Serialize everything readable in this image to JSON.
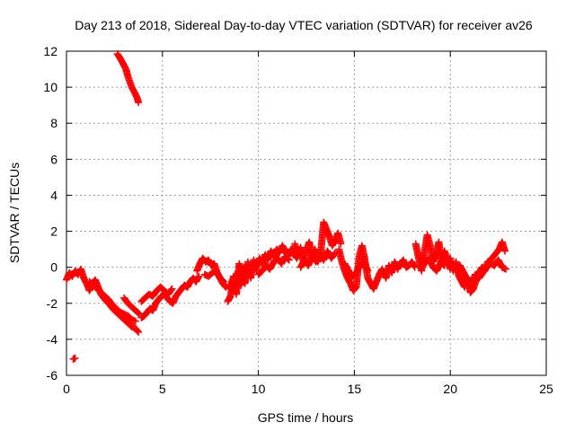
{
  "chart_data": {
    "type": "scatter",
    "title": "Day 213 of 2018, Sidereal Day-to-day VTEC variation (SDTVAR) for receiver av26",
    "xlabel": "GPS time / hours",
    "ylabel": "SDTVAR / TECUs",
    "xlim": [
      0,
      25
    ],
    "ylim": [
      -6,
      12
    ],
    "xticks": [
      "0",
      "5",
      "10",
      "15",
      "20",
      "25"
    ],
    "yticks": [
      "-6",
      "-4",
      "-2",
      "0",
      "2",
      "4",
      "6",
      "8",
      "10",
      "12"
    ],
    "grid": true,
    "marker": "+",
    "series": [
      {
        "name": "SDTVAR",
        "color": "#ff0000",
        "segments": [
          {
            "x": [
              2.65,
              2.8,
              2.95,
              3.1,
              3.2,
              3.3,
              3.4,
              3.5,
              3.6,
              3.7,
              3.75
            ],
            "y": [
              11.85,
              11.6,
              11.3,
              11.0,
              10.6,
              10.3,
              10.0,
              9.8,
              9.6,
              9.35,
              9.15
            ]
          },
          {
            "x": [
              0.35,
              0.45
            ],
            "y": [
              -5.1,
              -5.05
            ]
          },
          {
            "x": [
              0.0,
              0.15,
              0.3,
              0.45,
              0.6,
              0.75,
              0.9,
              1.05,
              1.2,
              1.35,
              1.5,
              1.65,
              1.8,
              2.0,
              2.2,
              2.4,
              2.6,
              2.8,
              3.0,
              3.2,
              3.4,
              3.6,
              3.75
            ],
            "y": [
              -0.7,
              -0.3,
              -0.5,
              -0.2,
              -0.4,
              -0.1,
              -0.6,
              -0.9,
              -1.3,
              -0.9,
              -0.7,
              -1.1,
              -1.5,
              -1.8,
              -2.0,
              -2.3,
              -2.5,
              -2.7,
              -2.9,
              -3.1,
              -3.3,
              -3.4,
              -3.6
            ]
          },
          {
            "x": [
              1.2,
              1.4,
              1.6,
              1.8,
              2.0,
              2.2,
              2.4,
              2.6,
              2.8,
              3.0,
              3.2,
              3.4,
              3.6
            ],
            "y": [
              -0.8,
              -1.0,
              -1.2,
              -1.4,
              -1.6,
              -1.8,
              -2.1,
              -2.3,
              -2.5,
              -2.6,
              -2.7,
              -2.9,
              -3.0
            ]
          },
          {
            "x": [
              3.0,
              3.2,
              3.4,
              3.6,
              3.8
            ],
            "y": [
              -1.7,
              -2.0,
              -2.2,
              -2.4,
              -2.6
            ]
          },
          {
            "x": [
              3.9,
              4.05,
              4.2,
              4.35,
              4.5,
              4.65,
              4.8,
              4.95,
              5.1,
              5.25,
              5.4,
              5.55,
              5.7,
              5.85,
              6.0,
              6.15,
              6.3,
              6.45,
              6.6,
              6.75,
              6.9
            ],
            "y": [
              -2.8,
              -2.7,
              -2.5,
              -2.3,
              -2.4,
              -2.0,
              -1.8,
              -1.6,
              -1.5,
              -1.7,
              -1.9,
              -2.0,
              -1.6,
              -1.4,
              -1.2,
              -1.0,
              -1.1,
              -0.8,
              -0.6,
              -0.8,
              -0.5
            ]
          },
          {
            "x": [
              3.9,
              4.1,
              4.3,
              4.5,
              4.7,
              4.9,
              5.1,
              5.3,
              5.5
            ],
            "y": [
              -1.9,
              -1.7,
              -1.5,
              -1.6,
              -1.3,
              -1.1,
              -1.3,
              -1.5,
              -1.2
            ]
          },
          {
            "x": [
              6.8,
              6.95,
              7.1,
              7.25,
              7.4,
              7.55,
              7.7,
              7.85,
              8.0,
              8.15,
              8.3
            ],
            "y": [
              -0.2,
              0.2,
              0.5,
              0.3,
              0.4,
              0.1,
              0.2,
              -0.3,
              -0.6,
              -0.9,
              -1.1
            ]
          },
          {
            "x": [
              7.2,
              7.4,
              7.6,
              7.8,
              8.0,
              8.2
            ],
            "y": [
              -0.4,
              -0.5,
              -0.3,
              -0.2,
              -0.6,
              -0.8
            ]
          },
          {
            "x": [
              8.4,
              8.55,
              8.7,
              8.85,
              9.0,
              9.15,
              9.3,
              9.45,
              9.6,
              9.75,
              9.9
            ],
            "y": [
              -1.9,
              -1.6,
              -0.5,
              -1.5,
              0.2,
              -0.3,
              -0.9,
              0.3,
              -0.6,
              0.4,
              -0.2
            ]
          },
          {
            "x": [
              8.5,
              8.65,
              8.8,
              8.95,
              9.1,
              9.25,
              9.4
            ],
            "y": [
              -1.2,
              -0.7,
              -1.3,
              -0.2,
              -1.0,
              0.0,
              -0.5
            ]
          },
          {
            "x": [
              9.9,
              10.05,
              10.2,
              10.35,
              10.5,
              10.65,
              10.8,
              10.95,
              11.1,
              11.25,
              11.4,
              11.55,
              11.7,
              11.85,
              12.0
            ],
            "y": [
              0.0,
              0.5,
              0.2,
              0.7,
              0.4,
              0.9,
              0.6,
              1.0,
              0.8,
              1.2,
              0.9,
              0.6,
              1.0,
              0.8,
              0.5
            ]
          },
          {
            "x": [
              10.0,
              10.2,
              10.4,
              10.6,
              10.8,
              11.0,
              11.2,
              11.4,
              11.6
            ],
            "y": [
              -0.4,
              -0.2,
              0.1,
              -0.1,
              0.3,
              0.5,
              0.2,
              0.6,
              0.4
            ]
          },
          {
            "x": [
              11.9,
              12.05,
              12.2,
              12.35,
              12.5,
              12.65,
              12.8,
              12.95,
              13.1,
              13.25,
              13.4,
              13.55,
              13.7,
              13.85,
              14.0,
              14.15,
              14.3
            ],
            "y": [
              1.3,
              0.6,
              1.1,
              0.2,
              0.9,
              1.4,
              0.6,
              1.0,
              0.3,
              0.8,
              2.5,
              2.1,
              1.7,
              1.2,
              1.5,
              1.9,
              1.3
            ]
          },
          {
            "x": [
              12.2,
              12.4,
              12.6,
              12.8,
              13.0,
              13.2,
              13.4,
              13.6,
              13.8,
              14.0
            ],
            "y": [
              0.0,
              0.4,
              0.1,
              0.6,
              0.3,
              0.7,
              0.4,
              0.9,
              0.5,
              0.8
            ]
          },
          {
            "x": [
              14.2,
              14.35,
              14.5,
              14.65,
              14.8,
              14.95,
              15.1,
              15.25,
              15.4,
              15.55,
              15.7,
              15.85,
              16.0,
              16.15,
              16.3,
              16.45
            ],
            "y": [
              1.0,
              0.3,
              -0.2,
              -0.6,
              -0.9,
              -1.3,
              -1.1,
              0.6,
              1.2,
              0.4,
              -0.6,
              -0.9,
              -1.2,
              -0.8,
              -0.4,
              -0.1
            ]
          },
          {
            "x": [
              14.5,
              14.7,
              14.9,
              15.1,
              15.3,
              15.5,
              15.7
            ],
            "y": [
              0.2,
              -0.2,
              -0.5,
              -0.3,
              0.1,
              0.3,
              -0.2
            ]
          },
          {
            "x": [
              16.5,
              16.65,
              16.8,
              16.95,
              17.1,
              17.25,
              17.4,
              17.55,
              17.7,
              17.85,
              18.0,
              18.15
            ],
            "y": [
              -0.2,
              -0.6,
              0.1,
              -0.3,
              0.3,
              -0.1,
              0.2,
              0.4,
              0.0,
              0.1,
              0.3,
              0.0
            ]
          },
          {
            "x": [
              18.2,
              18.35,
              18.5,
              18.65,
              18.8,
              18.95,
              19.1,
              19.25,
              19.4,
              19.55,
              19.7,
              19.85,
              20.0
            ],
            "y": [
              1.3,
              0.5,
              -0.2,
              0.8,
              1.8,
              1.2,
              0.3,
              0.7,
              1.4,
              0.2,
              0.9,
              0.4,
              -0.1
            ]
          },
          {
            "x": [
              18.5,
              18.7,
              18.9,
              19.1,
              19.3,
              19.5,
              19.7
            ],
            "y": [
              0.6,
              0.2,
              0.5,
              0.0,
              -0.2,
              0.3,
              0.1
            ]
          },
          {
            "x": [
              20.0,
              20.15,
              20.3,
              20.45,
              20.6,
              20.75,
              20.9,
              21.05,
              21.2,
              21.35,
              21.5,
              21.65,
              21.8,
              21.95,
              22.1,
              22.25,
              22.4,
              22.55,
              22.7,
              22.85
            ],
            "y": [
              0.5,
              -0.2,
              0.3,
              -0.5,
              -0.8,
              -1.1,
              -0.6,
              -1.4,
              -1.2,
              -0.7,
              -0.3,
              0.0,
              -0.2,
              0.3,
              0.4,
              0.6,
              0.8,
              1.0,
              1.4,
              0.9
            ]
          },
          {
            "x": [
              20.5,
              20.7,
              20.9,
              21.1,
              21.3,
              21.5,
              21.7,
              21.9,
              22.1,
              22.3,
              22.5,
              22.7,
              22.9
            ],
            "y": [
              0.1,
              -0.3,
              -0.7,
              -0.9,
              -0.4,
              -0.6,
              -0.3,
              0.0,
              0.2,
              0.1,
              0.4,
              0.0,
              -0.1
            ]
          }
        ]
      }
    ]
  }
}
